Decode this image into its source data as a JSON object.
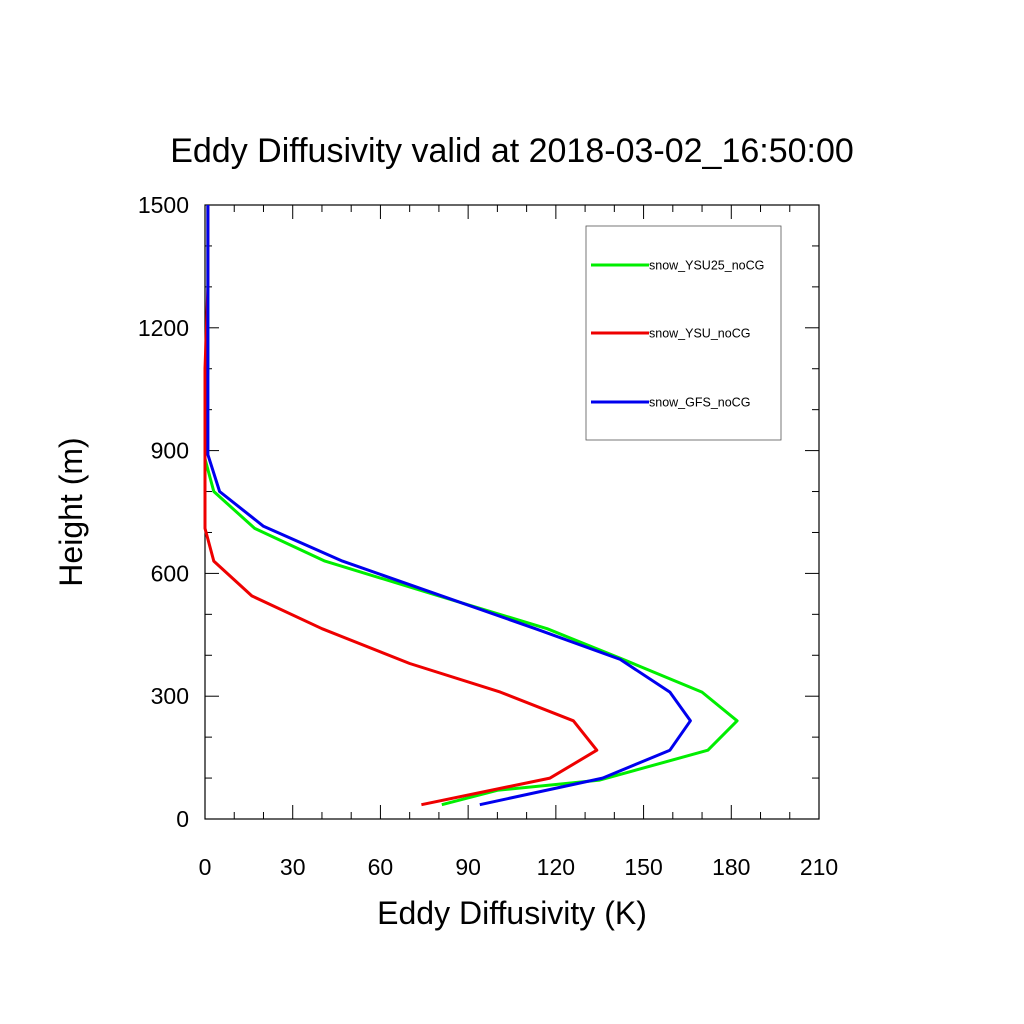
{
  "chart_data": {
    "type": "line",
    "title": "Eddy Diffusivity valid at 2018-03-02_16:50:00",
    "xlabel": "Eddy Diffusivity (K)",
    "ylabel": "Height (m)",
    "xlim": [
      0,
      210
    ],
    "ylim": [
      0,
      1500
    ],
    "xticks": [
      0,
      30,
      60,
      90,
      120,
      150,
      180,
      210
    ],
    "yticks": [
      0,
      300,
      600,
      900,
      1200,
      1500
    ],
    "x_minor_step": 10,
    "y_minor_step": 100,
    "legend_position": "top-right",
    "series": [
      {
        "name": "snow_YSU25_noCG",
        "color": "#00ee00",
        "points": [
          [
            81,
            35
          ],
          [
            100,
            70
          ],
          [
            135,
            95
          ],
          [
            172,
            168
          ],
          [
            182,
            240
          ],
          [
            170,
            310
          ],
          [
            143,
            390
          ],
          [
            117,
            465
          ],
          [
            80,
            545
          ],
          [
            41,
            630
          ],
          [
            17,
            710
          ],
          [
            3,
            800
          ],
          [
            0,
            880
          ],
          [
            0,
            950
          ],
          [
            1,
            1100
          ],
          [
            1,
            1300
          ],
          [
            1,
            1500
          ]
        ]
      },
      {
        "name": "snow_YSU_noCG",
        "color": "#ee0000",
        "points": [
          [
            74,
            35
          ],
          [
            118,
            100
          ],
          [
            134,
            168
          ],
          [
            126,
            240
          ],
          [
            101,
            310
          ],
          [
            70,
            380
          ],
          [
            40,
            465
          ],
          [
            16,
            545
          ],
          [
            3,
            630
          ],
          [
            0,
            710
          ],
          [
            0,
            800
          ],
          [
            0,
            950
          ],
          [
            0,
            1100
          ],
          [
            1,
            1300
          ],
          [
            1,
            1500
          ]
        ]
      },
      {
        "name": "snow_GFS_noCG",
        "color": "#0000ee",
        "points": [
          [
            94,
            35
          ],
          [
            136,
            100
          ],
          [
            159,
            168
          ],
          [
            166,
            240
          ],
          [
            159,
            310
          ],
          [
            142,
            390
          ],
          [
            113,
            465
          ],
          [
            81,
            545
          ],
          [
            47,
            630
          ],
          [
            20,
            715
          ],
          [
            5,
            800
          ],
          [
            1,
            890
          ],
          [
            1,
            950
          ],
          [
            1,
            1100
          ],
          [
            1,
            1300
          ],
          [
            1,
            1500
          ]
        ]
      }
    ]
  }
}
